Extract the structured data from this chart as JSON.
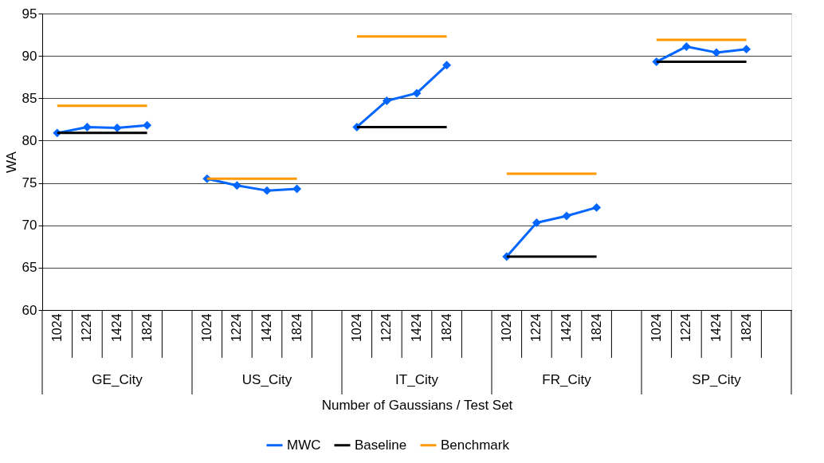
{
  "chart_data": {
    "type": "line",
    "xlabel": "Number of Gaussians / Test Set",
    "ylabel": "WA",
    "categories": [
      "1024",
      "1224",
      "1424",
      "1824",
      null,
      "1024",
      "1224",
      "1424",
      "1824",
      null,
      "1024",
      "1224",
      "1424",
      "1824",
      null,
      "1024",
      "1224",
      "1424",
      "1824",
      null,
      "1024",
      "1224",
      "1424",
      "1824",
      null
    ],
    "series": [
      {
        "name": "MWC",
        "color": "#0066ff",
        "marker": "diamond",
        "values": [
          80.9,
          81.6,
          81.5,
          81.8,
          null,
          75.5,
          74.7,
          74.1,
          74.3,
          null,
          81.6,
          84.7,
          85.6,
          88.9,
          null,
          66.3,
          70.3,
          71.1,
          72.1,
          null,
          89.3,
          91.1,
          90.4,
          90.8,
          null
        ]
      },
      {
        "name": "Baseline",
        "color": "#000000",
        "marker": "none",
        "values": [
          80.9,
          80.9,
          80.9,
          80.9,
          null,
          null,
          null,
          null,
          null,
          null,
          81.6,
          81.6,
          81.6,
          81.6,
          null,
          66.3,
          66.3,
          66.3,
          66.3,
          null,
          89.3,
          89.3,
          89.3,
          89.3,
          null
        ]
      },
      {
        "name": "Benchmark",
        "color": "#ff9900",
        "marker": "none",
        "values": [
          84.1,
          84.1,
          84.1,
          84.1,
          null,
          75.5,
          75.5,
          75.5,
          75.5,
          null,
          92.3,
          92.3,
          92.3,
          92.3,
          null,
          76.1,
          76.1,
          76.1,
          76.1,
          null,
          91.9,
          91.9,
          91.9,
          91.9,
          null
        ]
      }
    ],
    "annotations": [
      "GE_City",
      "US_City",
      "IT_City",
      "FR_City",
      "SP_City"
    ],
    "ylim": [
      60,
      95
    ],
    "yticks": [
      60,
      65,
      70,
      75,
      80,
      85,
      90,
      95
    ],
    "grid": "y",
    "legend": "bottom"
  }
}
